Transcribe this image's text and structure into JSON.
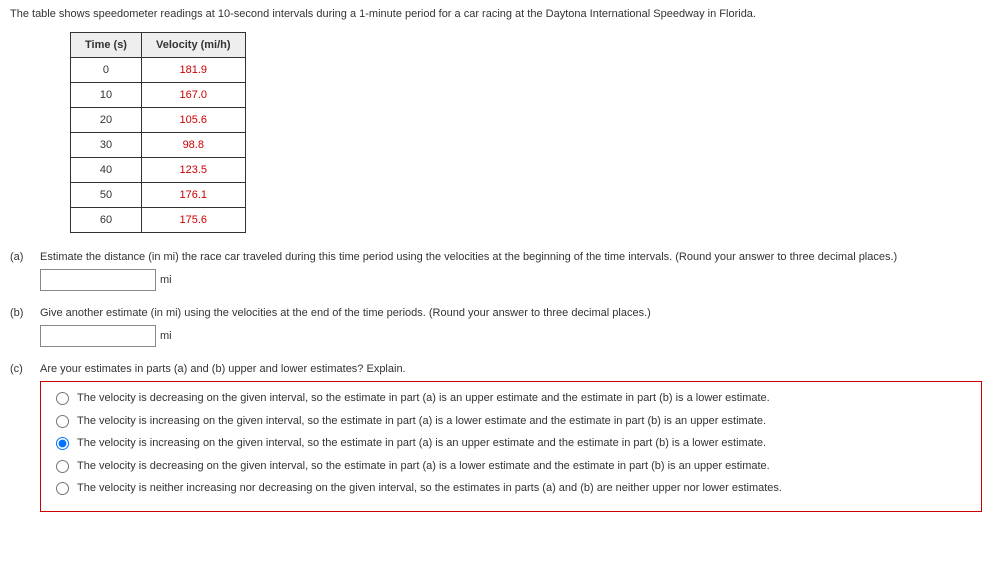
{
  "intro": "The table shows speedometer readings at 10-second intervals during a 1-minute period for a car racing at the Daytona International Speedway in Florida.",
  "table": {
    "headers": [
      "Time (s)",
      "Velocity (mi/h)"
    ],
    "rows": [
      [
        "0",
        "181.9"
      ],
      [
        "10",
        "167.0"
      ],
      [
        "20",
        "105.6"
      ],
      [
        "30",
        "98.8"
      ],
      [
        "40",
        "123.5"
      ],
      [
        "50",
        "176.1"
      ],
      [
        "60",
        "175.6"
      ]
    ],
    "value_color": "#cc0000",
    "header_bg": "#eeeeee"
  },
  "parts": {
    "a": {
      "label": "(a)",
      "text": "Estimate the distance (in mi) the race car traveled during this time period using the velocities at the beginning of the time intervals. (Round your answer to three decimal places.)",
      "unit": "mi"
    },
    "b": {
      "label": "(b)",
      "text": "Give another estimate (in mi) using the velocities at the end of the time periods. (Round your answer to three decimal places.)",
      "unit": "mi"
    },
    "c": {
      "label": "(c)",
      "text": "Are your estimates in parts (a) and (b) upper and lower estimates? Explain.",
      "choices": [
        "The velocity is decreasing on the given interval, so the estimate in part (a) is an upper estimate and the estimate in part (b) is a lower estimate.",
        "The velocity is increasing on the given interval, so the estimate in part (a) is a lower estimate and the estimate in part (b) is an upper estimate.",
        "The velocity is increasing on the given interval, so the estimate in part (a) is an upper estimate and the estimate in part (b) is a lower estimate.",
        "The velocity is decreasing on the given interval, so the estimate in part (a) is a lower estimate and the estimate in part (b) is an upper estimate.",
        "The velocity is neither increasing nor decreasing on the given interval, so the estimates in parts (a) and (b) are neither upper nor lower estimates."
      ],
      "selected_index": 2,
      "box_border_color": "#cc0000"
    }
  }
}
